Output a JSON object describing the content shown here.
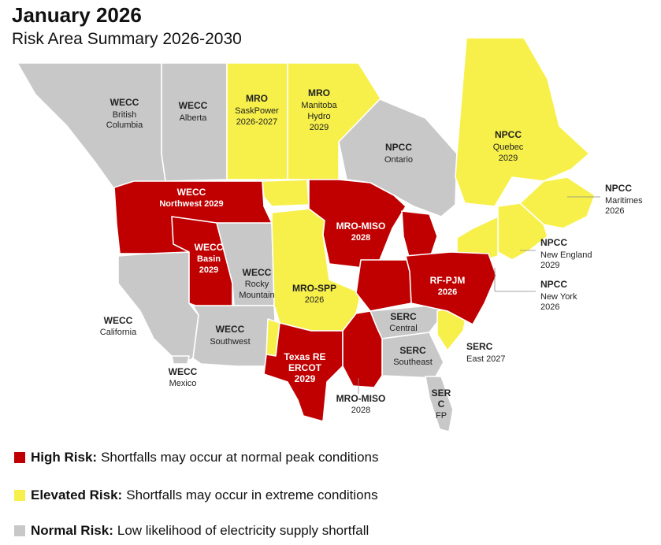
{
  "header": {
    "title": "January 2026",
    "subtitle": "Risk Area Summary 2026-2030"
  },
  "colors": {
    "high": "#c00000",
    "elevated": "#f7f04a",
    "normal": "#c8c8c8"
  },
  "regions": {
    "bc": {
      "name": "WECC",
      "l1": "British",
      "l2": "Columbia"
    },
    "alberta": {
      "name": "WECC",
      "l1": "Alberta"
    },
    "sask": {
      "name": "MRO",
      "l1": "SaskPower",
      "l2": "2026-2027"
    },
    "manitoba": {
      "name": "MRO",
      "l1": "Manitoba",
      "l2": "Hydro",
      "l3": "2029"
    },
    "ontario": {
      "name": "NPCC",
      "l1": "Ontario"
    },
    "quebec": {
      "name": "NPCC",
      "l1": "Quebec",
      "l2": "2029"
    },
    "maritimes": {
      "name": "NPCC",
      "l1": "Maritimes",
      "l2": "2026"
    },
    "newengland": {
      "name": "NPCC",
      "l1": "New England",
      "l2": "2029"
    },
    "newyork": {
      "name": "NPCC",
      "l1": "New York",
      "l2": "2026"
    },
    "northwest": {
      "name": "WECC",
      "l1": "Northwest 2029"
    },
    "basin": {
      "name": "WECC",
      "l1": "Basin",
      "l2": "2029"
    },
    "rocky": {
      "name": "WECC",
      "l1": "Rocky",
      "l2": "Mountain"
    },
    "california": {
      "name": "WECC",
      "l1": "California"
    },
    "southwest": {
      "name": "WECC",
      "l1": "Southwest"
    },
    "mexico": {
      "name": "WECC",
      "l1": "Mexico"
    },
    "miso_n": {
      "name": "MRO-MISO",
      "l1": "2028"
    },
    "spp": {
      "name": "MRO-SPP",
      "l1": "2026"
    },
    "pjm": {
      "name": "RF-PJM",
      "l1": "2026"
    },
    "serc_c": {
      "name": "SERC",
      "l1": "Central"
    },
    "serc_se": {
      "name": "SERC",
      "l1": "Southeast"
    },
    "serc_e": {
      "name": "SERC",
      "l1": "East 2027"
    },
    "serc_fp": {
      "name": "SER",
      "l1": "C",
      "l2": "FP"
    },
    "ercot": {
      "name": "Texas RE",
      "l1": "ERCOT",
      "l2": "2029"
    },
    "miso_s": {
      "name": "MRO-MISO",
      "l1": "2028"
    }
  },
  "legend": [
    {
      "key": "high",
      "label": "High Risk:",
      "desc": "Shortfalls may occur at normal peak conditions"
    },
    {
      "key": "elevated",
      "label": "Elevated Risk:",
      "desc": "Shortfalls may occur in extreme conditions"
    },
    {
      "key": "normal",
      "label": "Normal Risk:",
      "desc": "Low likelihood of electricity supply shortfall"
    }
  ]
}
